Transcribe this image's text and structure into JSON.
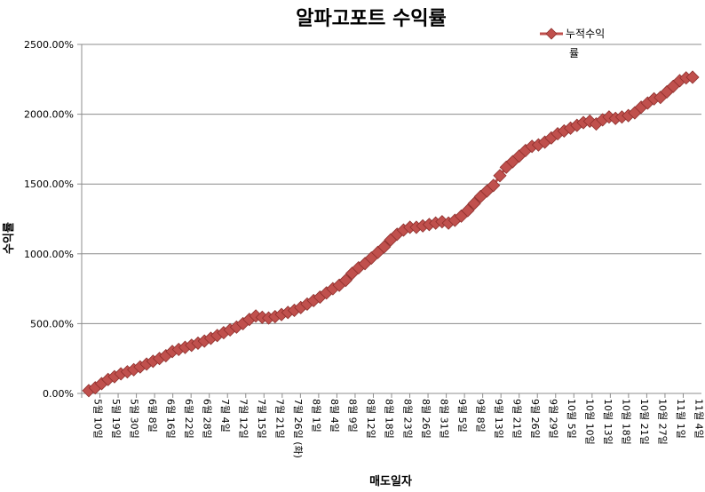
{
  "chart_data": {
    "type": "line",
    "title": "알파고포트 수익률",
    "xlabel": "매도일자",
    "ylabel": "수익률",
    "legend": {
      "label_line1": "누적수익",
      "label_line2": "률",
      "position": "top-right"
    },
    "grid": "horizontal",
    "ylim": [
      0,
      2500
    ],
    "yticks": [
      "0.00%",
      "500.00%",
      "1000.00%",
      "1500.00%",
      "2000.00%",
      "2500.00%"
    ],
    "xticks": [
      {
        "label": "5월 10일"
      },
      {
        "label": "5월 19일"
      },
      {
        "label": "5월 30일"
      },
      {
        "label": "6월 8일"
      },
      {
        "label": "6월 16일"
      },
      {
        "label": "6월 22일"
      },
      {
        "label": "6월 28일"
      },
      {
        "label": "7월 4일"
      },
      {
        "label": "7월 12일"
      },
      {
        "label": "7월 15일"
      },
      {
        "label": "7월 21일"
      },
      {
        "label": "7월 26일 (화)"
      },
      {
        "label": "8월 1일"
      },
      {
        "label": "8월 4일"
      },
      {
        "label": "8월 9일"
      },
      {
        "label": "8월 12일"
      },
      {
        "label": "8월 18일"
      },
      {
        "label": "8월 23일"
      },
      {
        "label": "8월 26일"
      },
      {
        "label": "8월 31일"
      },
      {
        "label": "9월 5일"
      },
      {
        "label": "9월 8일"
      },
      {
        "label": "9월 13일"
      },
      {
        "label": "9월 21일"
      },
      {
        "label": "9월 26일"
      },
      {
        "label": "9월 29일"
      },
      {
        "label": "10월 5일"
      },
      {
        "label": "10월 10일"
      },
      {
        "label": "10월 13일"
      },
      {
        "label": "10월 18일"
      },
      {
        "label": "10월 21일"
      },
      {
        "label": "10월 27일"
      },
      {
        "label": "11월 1일"
      },
      {
        "label": "11월 4일"
      }
    ],
    "series": [
      {
        "name": "누적수익률",
        "color": "#c0504d",
        "marker": "diamond",
        "values": [
          20,
          40,
          70,
          100,
          120,
          140,
          155,
          170,
          190,
          210,
          230,
          250,
          270,
          300,
          315,
          330,
          345,
          360,
          375,
          395,
          415,
          435,
          455,
          475,
          500,
          530,
          555,
          545,
          540,
          550,
          565,
          580,
          595,
          615,
          640,
          665,
          690,
          720,
          750,
          775,
          810,
          860,
          900,
          930,
          970,
          1010,
          1050,
          1100,
          1140,
          1170,
          1190,
          1190,
          1200,
          1210,
          1220,
          1230,
          1220,
          1240,
          1270,
          1310,
          1360,
          1410,
          1450,
          1490,
          1560,
          1620,
          1660,
          1700,
          1740,
          1770,
          1780,
          1800,
          1830,
          1860,
          1880,
          1900,
          1920,
          1940,
          1950,
          1930,
          1960,
          1980,
          1970,
          1980,
          1990,
          2010,
          2050,
          2080,
          2110,
          2120,
          2160,
          2200,
          2240,
          2260,
          2265
        ]
      }
    ]
  }
}
